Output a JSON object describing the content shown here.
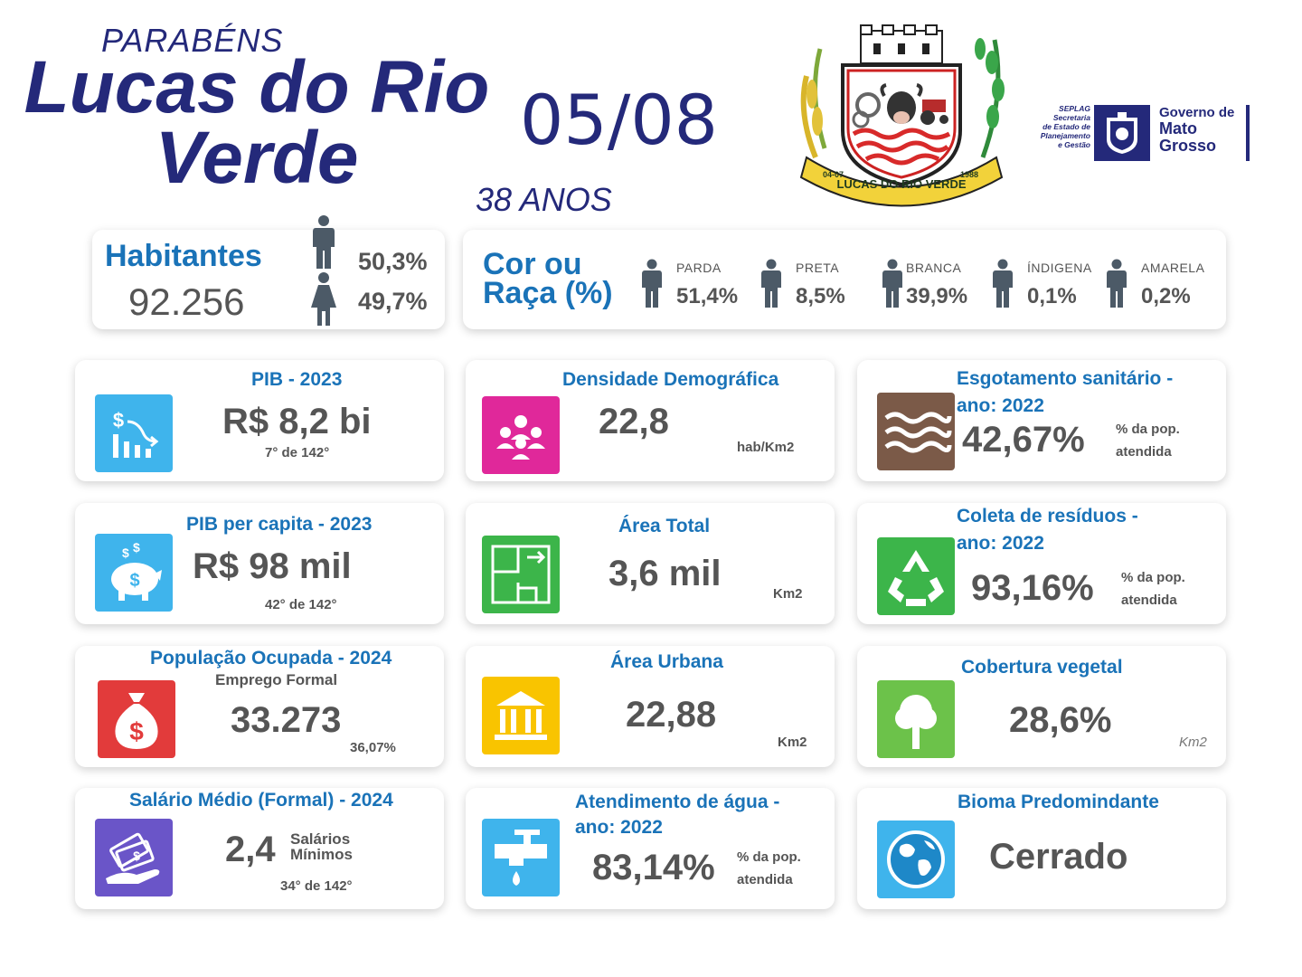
{
  "header": {
    "congrats": "PARABÉNS",
    "city_line1": "Lucas do Rio",
    "city_line2": "Verde",
    "date": "05/08",
    "years": "38 ANOS"
  },
  "crest": {
    "ribbon_text": "LUCAS DO RIO VERDE",
    "left_date": "04-07",
    "right_year": "1988"
  },
  "gov_logo": {
    "seplag_lines": [
      "SEPLAG",
      "Secretaria",
      "de Estado de",
      "Planejamento",
      "e Gestão"
    ],
    "gov_line1": "Governo de",
    "gov_line2": "Mato",
    "gov_line3": "Grosso"
  },
  "population": {
    "title": "Habitantes",
    "value": "92.256",
    "male_pct": "50,3%",
    "female_pct": "49,7%"
  },
  "race": {
    "title_line1": "Cor ou",
    "title_line2": "Raça (%)",
    "items": [
      {
        "label": "PARDA",
        "value": "51,4%"
      },
      {
        "label": "PRETA",
        "value": "8,5%"
      },
      {
        "label": "BRANCA",
        "value": "39,9%"
      },
      {
        "label": "ÍNDIGENA",
        "value": "0,1%"
      },
      {
        "label": "AMARELA",
        "value": "0,2%"
      }
    ]
  },
  "cards": {
    "pib": {
      "title": "PIB - 2023",
      "value": "R$ 8,2 bi",
      "rank": "7° de 142°"
    },
    "density": {
      "title": "Densidade Demográfica",
      "value": "22,8",
      "unit": "hab/Km2"
    },
    "sewage": {
      "title_line1": "Esgotamento sanitário -",
      "title_line2": "ano: 2022",
      "value": "42,67%",
      "unit_line1": "% da pop.",
      "unit_line2": "atendida"
    },
    "pib_capita": {
      "title": "PIB per capita - 2023",
      "value": "R$ 98 mil",
      "rank": "42° de 142°"
    },
    "area_total": {
      "title": "Área Total",
      "value": "3,6 mil",
      "unit": "Km2"
    },
    "waste": {
      "title_line1": "Coleta de resíduos -",
      "title_line2": "ano: 2022",
      "value": "93,16%",
      "unit_line1": "% da pop.",
      "unit_line2": "atendida"
    },
    "employed": {
      "title": "População Ocupada - 2024",
      "subtitle": "Emprego Formal",
      "value": "33.273",
      "pct": "36,07%"
    },
    "area_urban": {
      "title": "Área Urbana",
      "value": "22,88",
      "unit": "Km2"
    },
    "vegetation": {
      "title": "Cobertura vegetal",
      "value": "28,6%",
      "unit": "Km2"
    },
    "salary": {
      "title": "Salário Médio (Formal) - 2024",
      "value": "2,4",
      "unit_line1": "Salários",
      "unit_line2": "Mínimos",
      "rank": "34° de 142°"
    },
    "water": {
      "title_line1": "Atendimento de água -",
      "title_line2": "ano: 2022",
      "value": "83,14%",
      "unit_line1": "% da pop.",
      "unit_line2": "atendida"
    },
    "biome": {
      "title": "Bioma Predomindante",
      "value": "Cerrado"
    }
  },
  "colors": {
    "navy": "#24297a",
    "accent_blue": "#1a73b8",
    "text_gray": "#555555",
    "icon_blue": "#3fb4ec",
    "icon_magenta": "#e0289a",
    "icon_brown": "#7b5a48",
    "icon_green": "#3cb54a",
    "icon_red": "#e23b3b",
    "icon_yellow": "#f9c400",
    "icon_purple": "#6a55c8",
    "icon_leaf": "#6cc24a"
  },
  "icons": [
    "male-icon",
    "female-icon",
    "person-icon",
    "chart-dollar-icon",
    "people-group-icon",
    "waves-icon",
    "piggy-bank-icon",
    "floor-plan-icon",
    "recycle-icon",
    "money-bag-icon",
    "bank-building-icon",
    "tree-icon",
    "cash-hand-icon",
    "water-tap-icon",
    "globe-icon"
  ]
}
